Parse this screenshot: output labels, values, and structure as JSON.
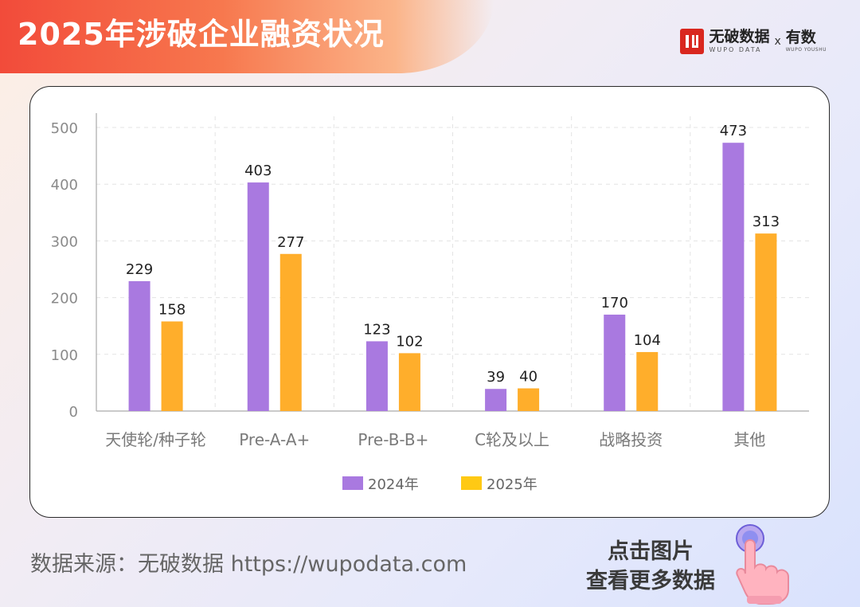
{
  "header": {
    "title": "2025年涉破企业融资状况"
  },
  "brand": {
    "name_cn": "无破数据",
    "name_en": "WUPO DATA",
    "separator": "x",
    "partner_cn": "有数",
    "partner_en": "WUPO YOUSHU"
  },
  "footer": {
    "source": "数据来源：无破数据 https://wupodata.com",
    "cta_line1": "点击图片",
    "cta_line2": "查看更多数据"
  },
  "colors": {
    "series_2024": "#a979e0",
    "series_2025": "#ffae2b",
    "legend_2025": "#ffc914"
  },
  "chart_data": {
    "type": "bar",
    "title": "2025年涉破企业融资状况",
    "xlabel": "",
    "ylabel": "",
    "ylim": [
      0,
      500
    ],
    "yticks": [
      0,
      100,
      200,
      300,
      400,
      500
    ],
    "grid": true,
    "legend_position": "bottom-center",
    "categories": [
      "天使轮/种子轮",
      "Pre-A-A+",
      "Pre-B-B+",
      "C轮及以上",
      "战略投资",
      "其他"
    ],
    "series": [
      {
        "name": "2024年",
        "values": [
          229,
          403,
          123,
          39,
          170,
          473
        ]
      },
      {
        "name": "2025年",
        "values": [
          158,
          277,
          102,
          40,
          104,
          313
        ]
      }
    ]
  }
}
